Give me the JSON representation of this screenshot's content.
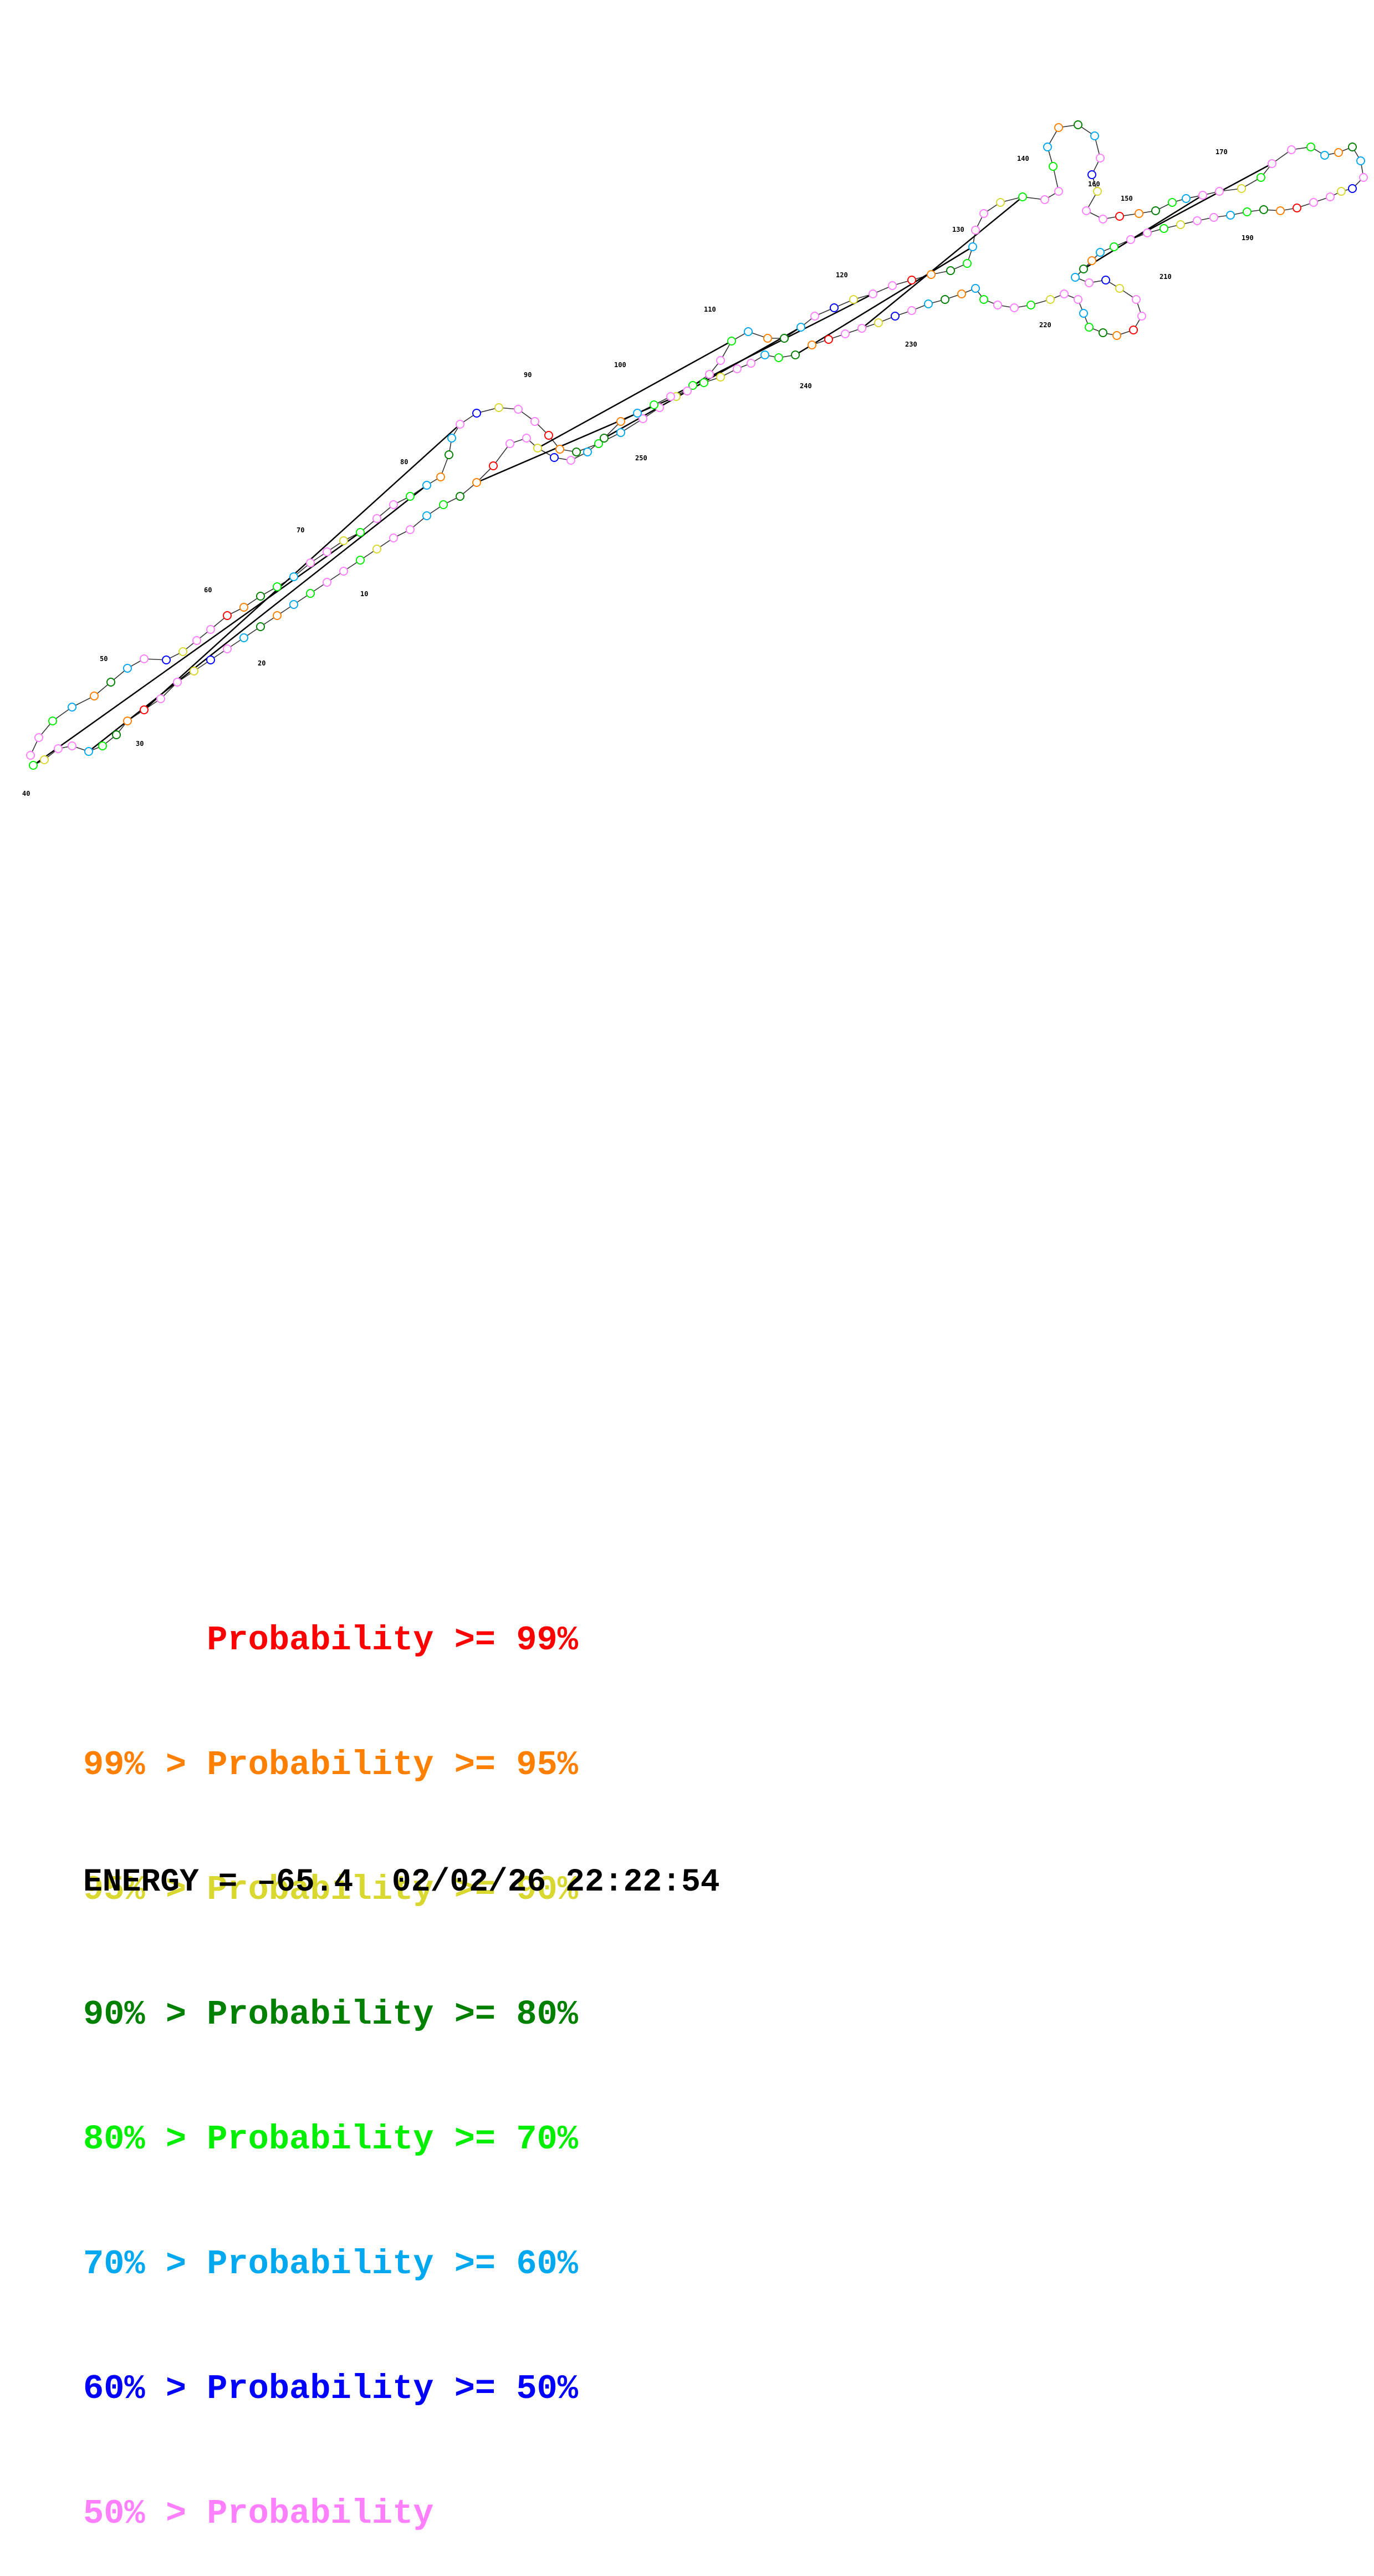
{
  "structure": {
    "position_labels": [
      "10",
      "20",
      "30",
      "40",
      "50",
      "60",
      "70",
      "80",
      "90",
      "100",
      "110",
      "120",
      "130",
      "140",
      "150",
      "160",
      "170",
      "190",
      "210",
      "220",
      "230",
      "240",
      "250"
    ],
    "category_colors": [
      "#ff0000",
      "#ff8000",
      "#d8d830",
      "#008000",
      "#00ee00",
      "#00a8f0",
      "#0000ff",
      "#ff80ff"
    ]
  },
  "legend": {
    "items": [
      {
        "text": "      Probability >= 99%",
        "color": "#ff0000"
      },
      {
        "text": "99% > Probability >= 95%",
        "color": "#ff8000"
      },
      {
        "text": "95% > Probability >= 90%",
        "color": "#d8d830"
      },
      {
        "text": "90% > Probability >= 80%",
        "color": "#008000"
      },
      {
        "text": "80% > Probability >= 70%",
        "color": "#00ee00"
      },
      {
        "text": "70% > Probability >= 60%",
        "color": "#00a8f0"
      },
      {
        "text": "60% > Probability >= 50%",
        "color": "#0000ff"
      },
      {
        "text": "50% > Probability",
        "color": "#ff80ff"
      }
    ]
  },
  "footer": {
    "energy": "ENERGY = –65.4",
    "timestamp": "02/02/26 22:22:54"
  }
}
